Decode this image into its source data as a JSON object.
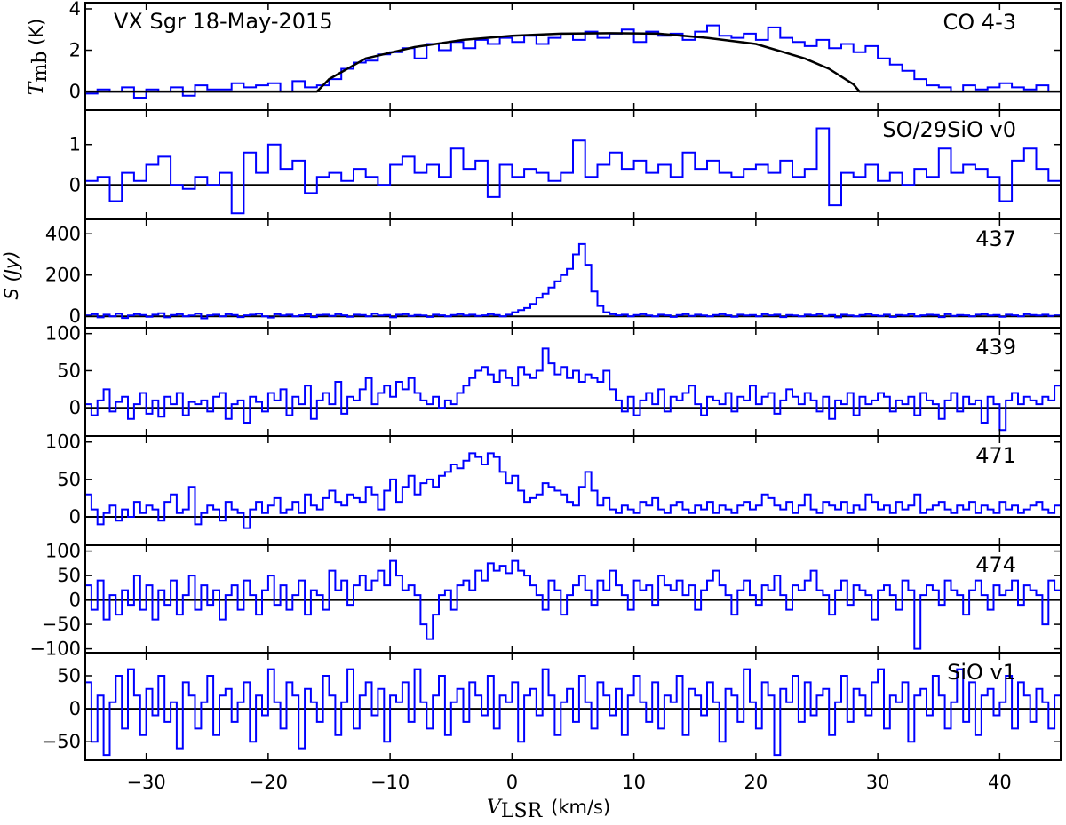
{
  "chart_data": {
    "type": "line",
    "style": "step",
    "title": "VX Sgr  18-May-2015",
    "x_axis": {
      "label_main": "V",
      "label_sub": "LSR",
      "label_unit": "(km/s)",
      "range": [
        -35,
        45
      ],
      "ticks": [
        -30,
        -20,
        -10,
        0,
        10,
        20,
        30,
        40
      ],
      "tick_labels": [
        "−30",
        "−20",
        "−10",
        "0",
        "10",
        "20",
        "30",
        "40"
      ]
    },
    "y_axis_labels": {
      "top_main": "T",
      "top_sub": "mb",
      "top_unit": " (K)",
      "shared": "S (Jy)"
    },
    "series_color": "#0000ff",
    "fit_color": "#000000",
    "grid": false,
    "panels": [
      {
        "label": "CO 4-3",
        "ylim": [
          -0.9,
          4.3
        ],
        "yticks": [
          0,
          2,
          4
        ],
        "ytick_labels": [
          "0",
          "2",
          "4"
        ],
        "channel_width": 1.0,
        "x_start": -35,
        "values": [
          -0.1,
          0.1,
          0.0,
          0.2,
          -0.3,
          0.1,
          0.0,
          0.2,
          -0.2,
          0.3,
          0.1,
          0.1,
          0.4,
          0.2,
          0.3,
          0.4,
          0.0,
          0.5,
          0.2,
          0.3,
          0.6,
          1.1,
          1.4,
          1.5,
          1.8,
          1.9,
          2.1,
          1.6,
          2.3,
          2.0,
          2.4,
          2.1,
          2.5,
          2.3,
          2.6,
          2.4,
          2.7,
          2.3,
          2.6,
          2.8,
          2.5,
          2.9,
          2.6,
          2.8,
          3.0,
          2.4,
          2.9,
          2.7,
          2.8,
          2.5,
          2.9,
          3.2,
          2.7,
          2.6,
          2.8,
          2.5,
          3.1,
          2.6,
          2.4,
          2.2,
          2.5,
          2.1,
          2.3,
          1.9,
          2.2,
          1.6,
          1.3,
          1.0,
          0.6,
          0.3,
          0.2,
          0.0,
          0.3,
          0.1,
          0.2,
          0.4,
          0.2,
          0.1,
          0.3,
          0.0
        ],
        "fit": {
          "x": [
            -35,
            -16,
            -15,
            -12,
            -8,
            -4,
            0,
            4,
            8,
            12,
            16,
            20,
            24,
            26,
            28,
            28.5,
            45
          ],
          "y": [
            0,
            0,
            0.6,
            1.6,
            2.15,
            2.5,
            2.7,
            2.8,
            2.82,
            2.8,
            2.6,
            2.3,
            1.6,
            1.1,
            0.35,
            0,
            0
          ]
        }
      },
      {
        "label": "SO/29SiO v0",
        "ylim": [
          -0.85,
          1.85
        ],
        "yticks": [
          0,
          1
        ],
        "ytick_labels": [
          "0",
          "1"
        ],
        "channel_width": 1.0,
        "x_start": -35,
        "values": [
          0.1,
          0.2,
          -0.4,
          0.3,
          0.1,
          0.5,
          0.7,
          0.0,
          -0.1,
          0.2,
          0.0,
          0.3,
          -0.7,
          0.8,
          0.3,
          1.0,
          0.4,
          0.6,
          -0.2,
          0.2,
          0.3,
          0.1,
          0.4,
          0.2,
          0.0,
          0.5,
          0.7,
          0.3,
          0.5,
          0.2,
          0.9,
          0.4,
          0.6,
          -0.3,
          0.5,
          0.2,
          0.4,
          0.3,
          0.1,
          0.3,
          1.1,
          0.2,
          0.5,
          0.8,
          0.4,
          0.6,
          0.3,
          0.5,
          0.2,
          0.8,
          0.4,
          0.6,
          0.3,
          0.2,
          0.4,
          0.5,
          0.3,
          0.6,
          0.2,
          0.4,
          1.4,
          -0.5,
          0.3,
          0.2,
          0.5,
          0.1,
          0.3,
          0.0,
          0.4,
          0.2,
          0.9,
          0.3,
          0.5,
          0.4,
          0.2,
          -0.4,
          0.6,
          0.9,
          0.4,
          0.1
        ]
      },
      {
        "label": "437",
        "ylim": [
          -55,
          470
        ],
        "yticks": [
          0,
          200,
          400
        ],
        "ytick_labels": [
          "0",
          "200",
          "400"
        ],
        "channel_width": 0.5,
        "x_start": -35,
        "values": [
          5,
          10,
          -5,
          8,
          0,
          12,
          -8,
          4,
          10,
          6,
          -2,
          8,
          15,
          -5,
          6,
          10,
          0,
          4,
          12,
          -10,
          5,
          8,
          0,
          10,
          6,
          -4,
          5,
          8,
          12,
          0,
          -6,
          10,
          4,
          8,
          0,
          5,
          10,
          -4,
          6,
          8,
          2,
          10,
          5,
          -2,
          8,
          6,
          0,
          12,
          4,
          6,
          -5,
          8,
          10,
          2,
          6,
          4,
          -3,
          8,
          5,
          0,
          6,
          10,
          4,
          8,
          2,
          5,
          10,
          6,
          0,
          8,
          20,
          30,
          40,
          60,
          90,
          110,
          140,
          170,
          200,
          230,
          300,
          350,
          250,
          120,
          50,
          20,
          10,
          5,
          8,
          0,
          6,
          10,
          4,
          0,
          8,
          5,
          -3,
          6,
          10,
          2,
          8,
          4,
          0,
          6,
          10,
          5,
          -2,
          8,
          4,
          6,
          0,
          10,
          5,
          8,
          -4,
          6,
          4,
          0,
          8,
          5,
          10,
          2,
          6,
          -5,
          8,
          4,
          0,
          6,
          10,
          5,
          2,
          8,
          -3,
          6,
          4,
          10,
          0,
          5,
          8,
          6,
          -4,
          10,
          2,
          6,
          5,
          0,
          8,
          10,
          4,
          6,
          -2,
          8,
          5,
          0,
          10,
          6,
          4,
          8,
          2,
          5
        ]
      },
      {
        "label": "439",
        "ylim": [
          -38,
          108
        ],
        "yticks": [
          0,
          50,
          100
        ],
        "ytick_labels": [
          "0",
          "50",
          "100"
        ],
        "channel_width": 0.5,
        "x_start": -35,
        "values": [
          5,
          -10,
          10,
          25,
          -5,
          8,
          15,
          -15,
          5,
          20,
          -8,
          10,
          -12,
          15,
          5,
          20,
          -10,
          8,
          5,
          10,
          -5,
          15,
          20,
          -15,
          5,
          10,
          -20,
          15,
          8,
          -5,
          20,
          10,
          25,
          -10,
          15,
          5,
          30,
          -15,
          10,
          20,
          5,
          35,
          -8,
          15,
          10,
          25,
          40,
          5,
          20,
          30,
          15,
          35,
          25,
          40,
          20,
          10,
          5,
          15,
          0,
          10,
          5,
          20,
          30,
          40,
          50,
          55,
          45,
          35,
          50,
          40,
          30,
          55,
          45,
          40,
          50,
          80,
          60,
          45,
          55,
          40,
          50,
          35,
          45,
          40,
          35,
          50,
          25,
          10,
          -5,
          15,
          -10,
          10,
          20,
          5,
          25,
          -5,
          15,
          10,
          20,
          30,
          5,
          -10,
          15,
          10,
          5,
          20,
          -5,
          15,
          10,
          30,
          5,
          15,
          20,
          -8,
          10,
          25,
          15,
          5,
          20,
          10,
          -5,
          15,
          -15,
          10,
          5,
          20,
          -10,
          15,
          5,
          10,
          20,
          15,
          -5,
          10,
          5,
          15,
          -10,
          20,
          10,
          5,
          -15,
          10,
          20,
          -5,
          15,
          5,
          10,
          -20,
          15,
          5,
          -30,
          10,
          20,
          5,
          15,
          10,
          5,
          15,
          10,
          30
        ]
      },
      {
        "label": "471",
        "ylim": [
          -38,
          108
        ],
        "yticks": [
          0,
          50,
          100
        ],
        "ytick_labels": [
          "0",
          "50",
          "100"
        ],
        "channel_width": 0.5,
        "x_start": -35,
        "values": [
          30,
          10,
          -10,
          5,
          15,
          -5,
          10,
          0,
          20,
          5,
          15,
          10,
          -5,
          20,
          30,
          5,
          10,
          40,
          -10,
          5,
          15,
          10,
          -5,
          20,
          10,
          5,
          -15,
          10,
          20,
          5,
          15,
          25,
          5,
          10,
          20,
          5,
          30,
          15,
          10,
          25,
          35,
          20,
          15,
          30,
          25,
          20,
          40,
          30,
          10,
          35,
          50,
          20,
          40,
          55,
          30,
          45,
          50,
          40,
          55,
          60,
          70,
          65,
          75,
          85,
          80,
          70,
          85,
          80,
          60,
          45,
          55,
          35,
          20,
          25,
          30,
          45,
          40,
          35,
          30,
          20,
          15,
          40,
          60,
          35,
          15,
          25,
          10,
          5,
          15,
          10,
          5,
          20,
          15,
          25,
          10,
          5,
          15,
          20,
          10,
          5,
          15,
          10,
          20,
          5,
          15,
          10,
          5,
          15,
          20,
          10,
          15,
          30,
          25,
          15,
          10,
          20,
          5,
          15,
          30,
          10,
          5,
          20,
          15,
          10,
          20,
          5,
          15,
          10,
          30,
          20,
          10,
          15,
          5,
          20,
          10,
          15,
          30,
          5,
          10,
          15,
          20,
          10,
          5,
          15,
          10,
          20,
          5,
          15,
          10,
          5,
          20,
          10,
          15,
          5,
          10,
          15,
          20,
          10,
          5,
          15
        ]
      },
      {
        "label": "474",
        "ylim": [
          -108,
          112
        ],
        "yticks": [
          -100,
          -50,
          0,
          50,
          100
        ],
        "ytick_labels": [
          "−100",
          "−50",
          "0",
          "50",
          "100"
        ],
        "channel_width": 0.5,
        "x_start": -35,
        "values": [
          30,
          -20,
          40,
          -40,
          10,
          -30,
          20,
          -10,
          50,
          -20,
          30,
          -40,
          20,
          -10,
          40,
          -30,
          10,
          50,
          -20,
          30,
          -10,
          20,
          -40,
          10,
          30,
          -20,
          40,
          10,
          -30,
          20,
          50,
          -10,
          30,
          -20,
          10,
          40,
          -30,
          20,
          10,
          -20,
          60,
          20,
          40,
          -10,
          30,
          50,
          20,
          40,
          60,
          30,
          80,
          50,
          20,
          30,
          10,
          -50,
          -80,
          -30,
          10,
          20,
          -20,
          30,
          40,
          20,
          60,
          40,
          75,
          60,
          70,
          55,
          80,
          60,
          50,
          30,
          10,
          -20,
          40,
          20,
          -30,
          10,
          30,
          50,
          20,
          -10,
          40,
          20,
          60,
          30,
          10,
          -20,
          40,
          20,
          30,
          -10,
          50,
          30,
          20,
          40,
          10,
          30,
          -20,
          20,
          40,
          60,
          30,
          10,
          -30,
          20,
          40,
          10,
          -10,
          30,
          20,
          50,
          10,
          -20,
          30,
          20,
          40,
          60,
          20,
          10,
          -30,
          20,
          40,
          -10,
          30,
          20,
          10,
          -40,
          20,
          30,
          10,
          -20,
          40,
          20,
          -100,
          10,
          30,
          20,
          -10,
          40,
          20,
          10,
          -30,
          20,
          40,
          10,
          -20,
          30,
          10,
          20,
          40,
          -10,
          30,
          20,
          10,
          -50,
          40,
          20
        ]
      },
      {
        "label": "SiO v1",
        "ylim": [
          -78,
          85
        ],
        "yticks": [
          -50,
          0,
          50
        ],
        "ytick_labels": [
          "−50",
          "0",
          "50"
        ],
        "channel_width": 0.5,
        "x_start": -35,
        "values": [
          40,
          -50,
          20,
          -70,
          10,
          50,
          -30,
          60,
          20,
          -40,
          30,
          -10,
          50,
          -20,
          10,
          -60,
          40,
          20,
          -30,
          10,
          50,
          -40,
          20,
          30,
          -20,
          10,
          40,
          -50,
          20,
          -10,
          60,
          10,
          -30,
          40,
          20,
          -60,
          30,
          10,
          -20,
          50,
          20,
          -40,
          10,
          60,
          -30,
          20,
          40,
          -10,
          30,
          -50,
          20,
          10,
          40,
          -20,
          60,
          10,
          -30,
          20,
          50,
          -40,
          10,
          30,
          -20,
          40,
          20,
          -10,
          50,
          -30,
          20,
          10,
          40,
          -50,
          20,
          30,
          -10,
          60,
          20,
          -40,
          10,
          30,
          -20,
          50,
          10,
          -30,
          40,
          20,
          -10,
          30,
          -40,
          20,
          50,
          10,
          -20,
          40,
          -30,
          20,
          10,
          50,
          -40,
          30,
          20,
          -10,
          40,
          10,
          -50,
          30,
          20,
          -20,
          60,
          10,
          -30,
          40,
          20,
          -70,
          30,
          10,
          50,
          -20,
          40,
          -10,
          20,
          30,
          -40,
          10,
          50,
          -20,
          30,
          20,
          -10,
          40,
          60,
          -30,
          20,
          10,
          40,
          -50,
          20,
          30,
          -10,
          50,
          20,
          -30,
          10,
          60,
          -20,
          40,
          -40,
          20,
          30,
          -10,
          10,
          50,
          -30,
          40,
          20,
          -20,
          30,
          10,
          -30,
          20
        ]
      }
    ]
  }
}
